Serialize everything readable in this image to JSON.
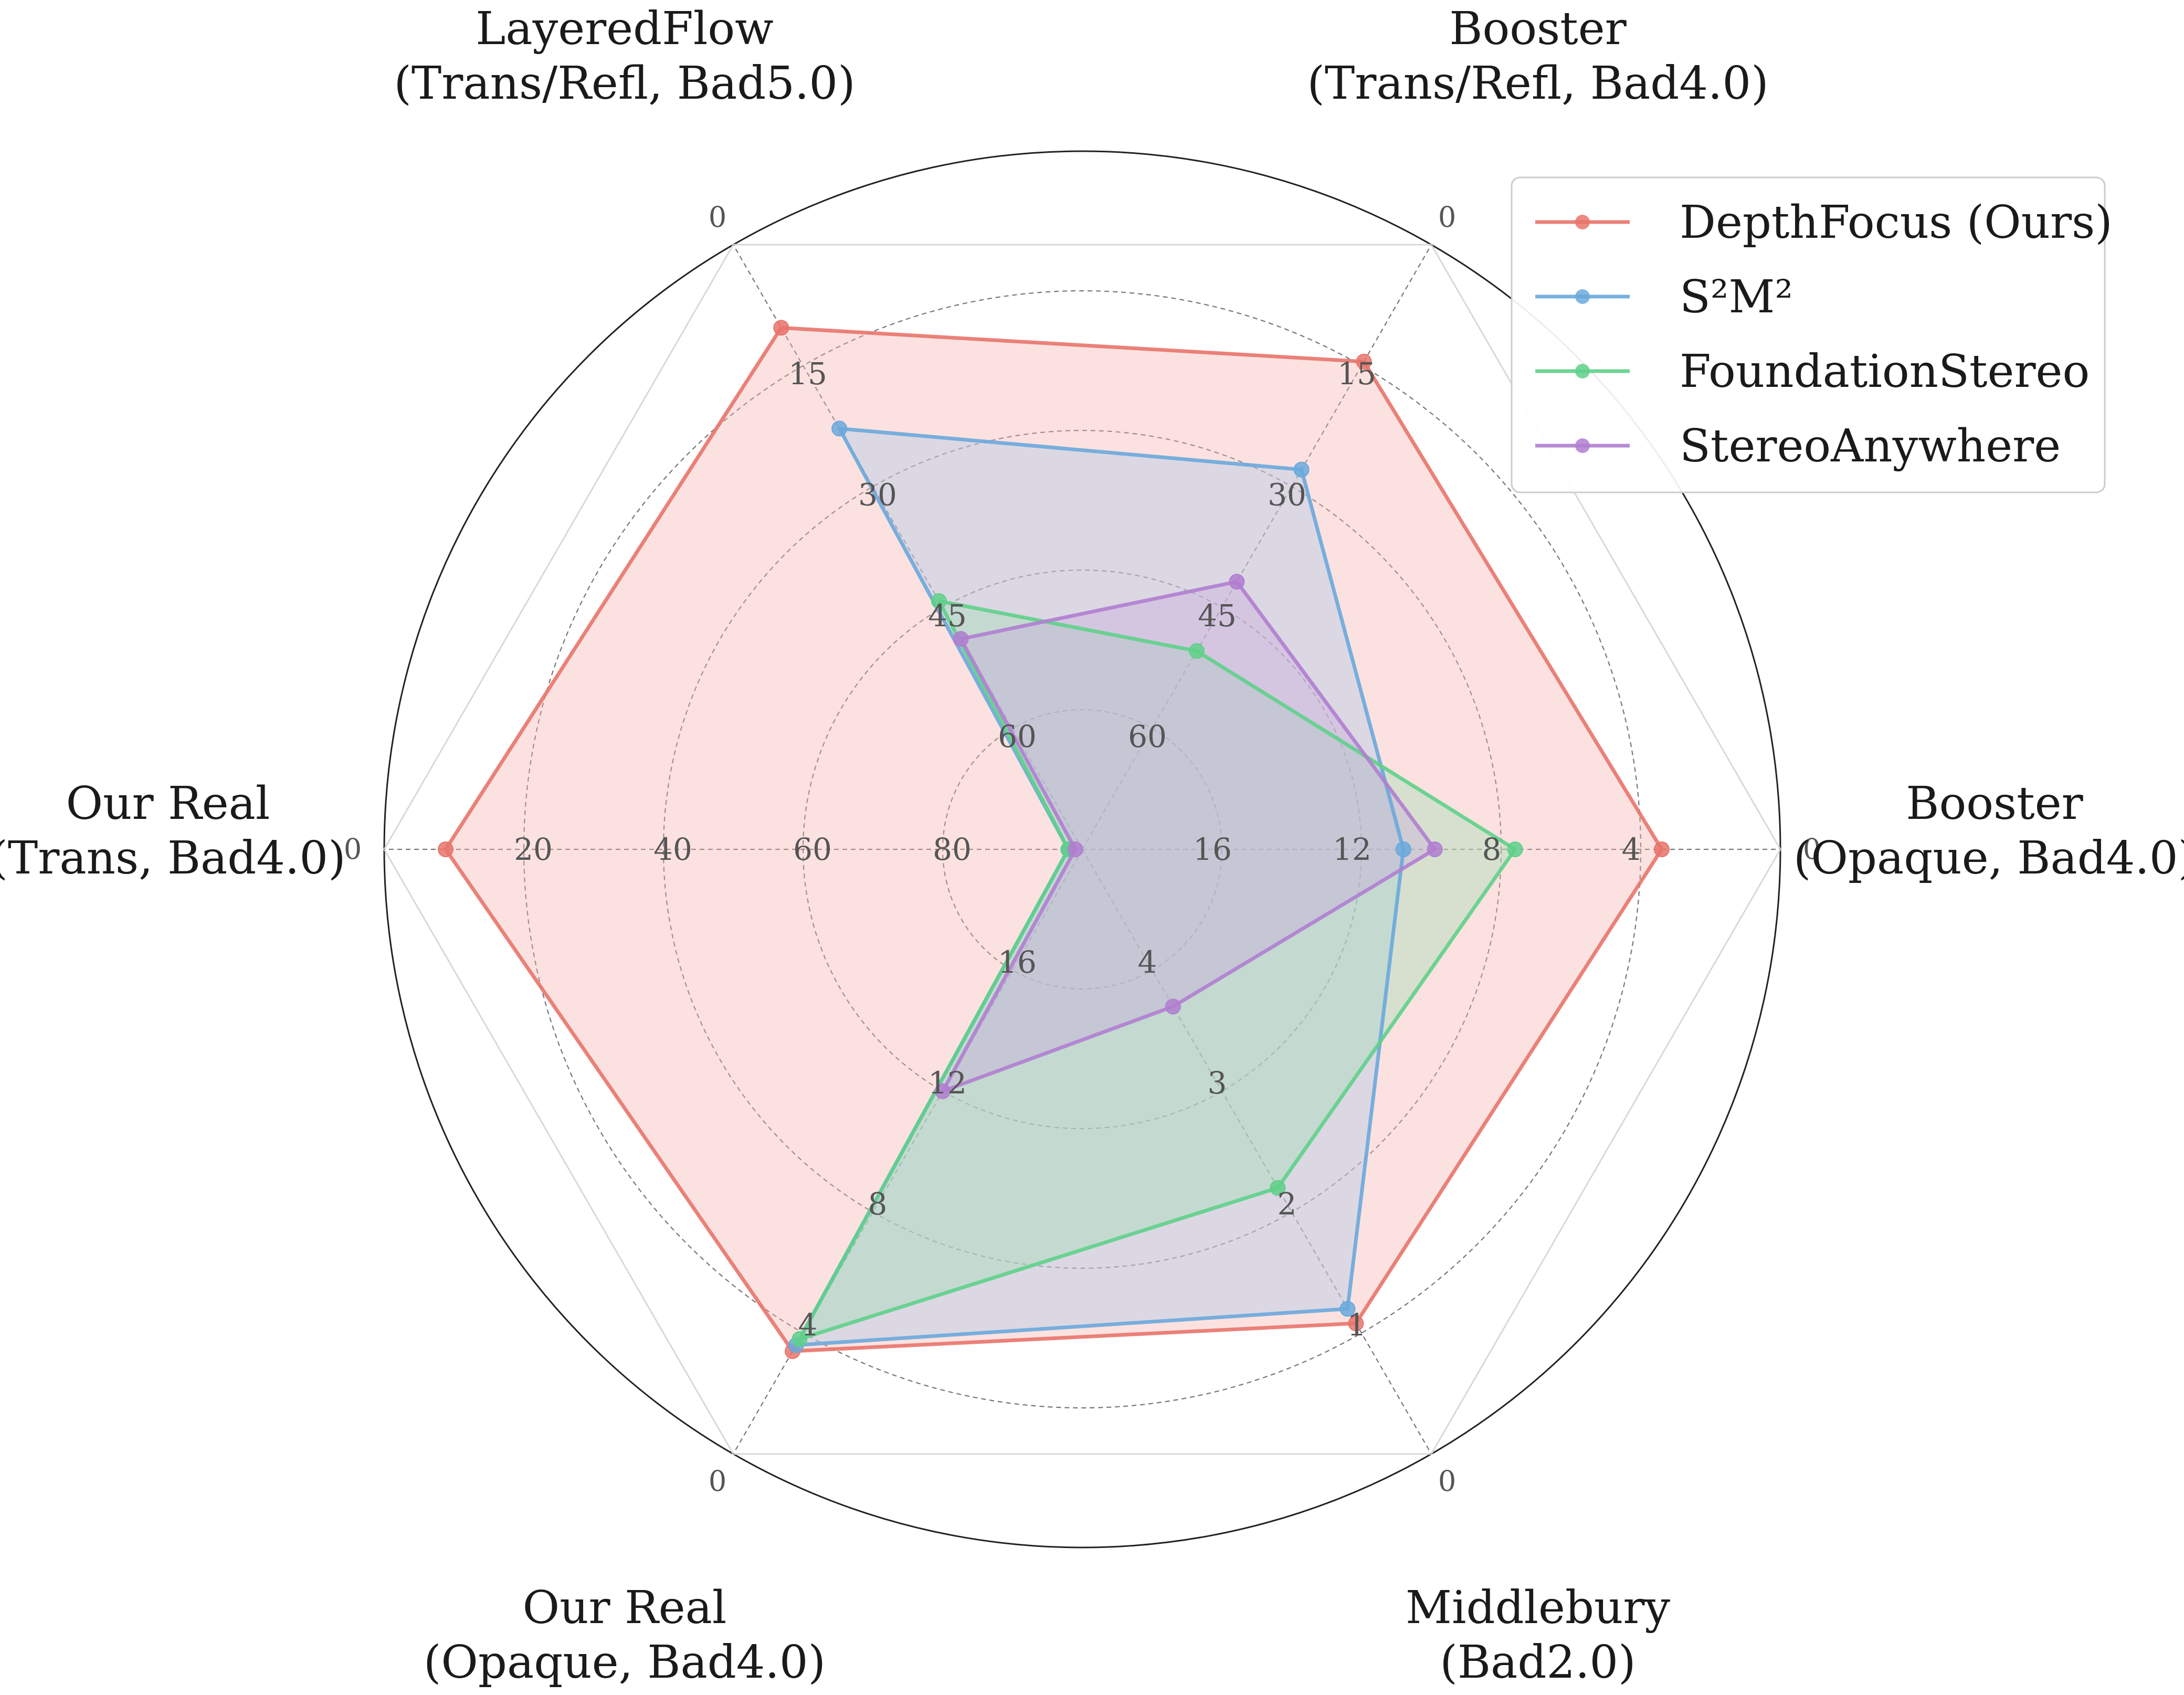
{
  "chart_data": {
    "type": "radar",
    "title": "",
    "axes": [
      {
        "id": "booster-opaque",
        "label_lines": [
          "Booster",
          "(Opaque, Bad4.0)"
        ],
        "max": 20,
        "ticks": [
          4,
          8,
          12,
          16
        ],
        "zero_label": "0"
      },
      {
        "id": "booster-trans",
        "label_lines": [
          "Booster",
          "(Trans/Refl, Bad4.0)"
        ],
        "max": 75,
        "ticks": [
          15,
          30,
          45,
          60
        ],
        "zero_label": "0"
      },
      {
        "id": "layeredflow",
        "label_lines": [
          "LayeredFlow",
          "(Trans/Refl, Bad5.0)"
        ],
        "max": 75,
        "ticks": [
          15,
          30,
          45,
          60
        ],
        "zero_label": "0"
      },
      {
        "id": "our-real-trans",
        "label_lines": [
          "Our Real",
          "(Trans, Bad4.0)"
        ],
        "max": 100,
        "ticks": [
          20,
          40,
          60,
          80
        ],
        "zero_label": "0"
      },
      {
        "id": "our-real-opaque",
        "label_lines": [
          "Our Real",
          "(Opaque, Bad4.0)"
        ],
        "max": 20,
        "ticks": [
          4,
          8,
          12,
          16
        ],
        "zero_label": "0"
      },
      {
        "id": "middlebury",
        "label_lines": [
          "Middlebury",
          "(Bad2.0)"
        ],
        "max": 5,
        "ticks": [
          1,
          2,
          3,
          4
        ],
        "zero_label": "0"
      }
    ],
    "series": [
      {
        "name": "DepthFocus (Ours)",
        "color": "#e8746b",
        "fill": "#f4b4ae",
        "values": [
          3.4,
          14.5,
          10.3,
          8.8,
          3.4,
          1.08
        ]
      },
      {
        "name": "S²M²",
        "color": "#6aa9dc",
        "fill": "#a9c9e8",
        "values": [
          10.8,
          27.9,
          22.8,
          98.0,
          3.6,
          1.2
        ]
      },
      {
        "name": "FoundationStereo",
        "color": "#5fd08a",
        "fill": "#9fdcb3",
        "values": [
          7.6,
          50.4,
          44.2,
          98.0,
          3.8,
          2.2
        ]
      },
      {
        "name": "StereoAnywhere",
        "color": "#b07ed0",
        "fill": "#c9a8de",
        "values": [
          9.9,
          41.8,
          48.9,
          99.0,
          12.0,
          3.7
        ]
      }
    ],
    "legend_position": "top-right",
    "grid": true
  }
}
